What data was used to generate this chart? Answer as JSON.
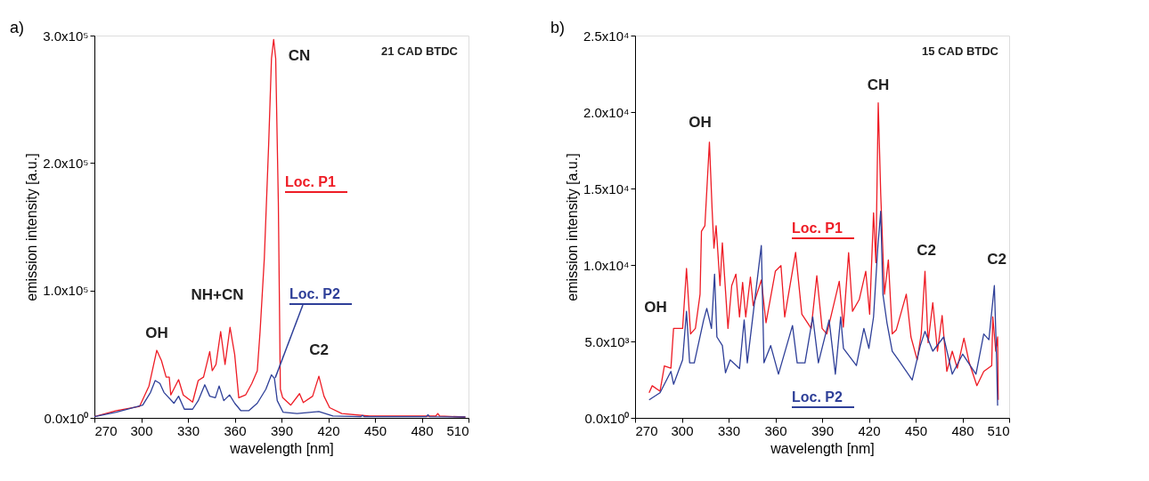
{
  "chart_data": [
    {
      "type": "line",
      "title": "a)",
      "xlabel": "wavelength [nm]",
      "ylabel": "emission intensity [a.u.]",
      "xlim": [
        270,
        510
      ],
      "xticks": [
        270,
        300,
        330,
        360,
        390,
        420,
        450,
        480,
        510
      ],
      "ylim": [
        0,
        300000
      ],
      "yticks": [
        {
          "value": 0,
          "label": "0.0x10⁰"
        },
        {
          "value": 100000,
          "label": "1.0x10⁵"
        },
        {
          "value": 200000,
          "label": "2.0x10⁵"
        },
        {
          "value": 300000,
          "label": "3.0x10⁵"
        }
      ],
      "grid": false,
      "line_style": "solid",
      "marker": "none",
      "series": [
        {
          "name": "Loc. P1",
          "color": "#ee1c25",
          "x": [
            270,
            284,
            299,
            305,
            310,
            313,
            316,
            318,
            319,
            324,
            327,
            333,
            336.6,
            340,
            344,
            345.6,
            348,
            351,
            353.8,
            357,
            360,
            362.6,
            367,
            371,
            374.5,
            376.3,
            379,
            381.8,
            383.6,
            385,
            386.3,
            388,
            389.3,
            390.8,
            396,
            401.6,
            404,
            410,
            414,
            417.3,
            420.9,
            428.7,
            446.6,
            464.9,
            489,
            490.3,
            491.5,
            508
          ],
          "values": [
            1000,
            5600,
            9000,
            25000,
            53000,
            45000,
            32000,
            32000,
            18000,
            30000,
            18000,
            12400,
            29300,
            32000,
            52000,
            37000,
            42000,
            67700,
            42000,
            71000,
            49600,
            15800,
            18000,
            27000,
            37000,
            68000,
            125000,
            215000,
            282000,
            297000,
            282000,
            169000,
            22500,
            15800,
            10000,
            19000,
            12000,
            17000,
            32700,
            17000,
            8000,
            3400,
            1400,
            1400,
            1400,
            3400,
            1400,
            700
          ]
        },
        {
          "name": "Loc. P2",
          "color": "#2e3f98",
          "x": [
            270,
            284,
            301,
            306,
            309,
            312,
            314.6,
            321,
            324,
            327.7,
            333,
            336.6,
            340.8,
            344,
            347.6,
            350,
            353,
            356.7,
            360,
            364,
            369,
            374.5,
            380,
            383.6,
            385.5,
            387.3,
            391,
            400,
            414,
            423,
            441,
            442,
            443,
            483,
            484,
            485,
            508
          ],
          "values": [
            1000,
            4500,
            10000,
            20000,
            29300,
            27000,
            20000,
            11500,
            17000,
            6800,
            6800,
            13500,
            26000,
            17000,
            15800,
            25000,
            13500,
            18000,
            11500,
            5600,
            5600,
            11500,
            22500,
            33800,
            31000,
            13500,
            4500,
            3400,
            5000,
            1500,
            1000,
            2000,
            1000,
            1000,
            2500,
            1000,
            700
          ]
        }
      ],
      "annotations": [
        "21 CAD BTDC",
        "OH",
        "NH+CN",
        "CN",
        "C2"
      ]
    },
    {
      "type": "line",
      "title": "b)",
      "xlabel": "wavelength [nm]",
      "ylabel": "emission intensity [a.u.]",
      "xlim": [
        270,
        510
      ],
      "xticks": [
        270,
        300,
        330,
        360,
        390,
        420,
        450,
        480,
        510
      ],
      "ylim": [
        0,
        25000
      ],
      "yticks": [
        {
          "value": 0,
          "label": "0.0x10⁰"
        },
        {
          "value": 5000,
          "label": "5.0x10³"
        },
        {
          "value": 10000,
          "label": "1.0x10⁴"
        },
        {
          "value": 15000,
          "label": "1.5x10⁴"
        },
        {
          "value": 20000,
          "label": "2.0x10⁴"
        },
        {
          "value": 25000,
          "label": "2.5x10⁴"
        }
      ],
      "grid": false,
      "line_style": "solid",
      "marker": "none",
      "series": [
        {
          "name": "Loc. P1",
          "color": "#ee1c25",
          "x": [
            279,
            281,
            286,
            288.8,
            293,
            294.7,
            300.5,
            303,
            305.6,
            308.7,
            311.7,
            312.6,
            314.8,
            317.7,
            319.4,
            320.6,
            322,
            324.5,
            326,
            329.6,
            332,
            334.7,
            337,
            339,
            341,
            344,
            345.8,
            351,
            354,
            360,
            363.6,
            366,
            373,
            377,
            383,
            386.6,
            390,
            393,
            401,
            403.6,
            407,
            409.5,
            413.8,
            418,
            420.5,
            423,
            424.5,
            426,
            427.6,
            430,
            432.5,
            435,
            437.6,
            444,
            447,
            451,
            453.6,
            456,
            458,
            461,
            464,
            467,
            470,
            473.5,
            476.7,
            481,
            484.4,
            489.3,
            493.7,
            498.8,
            499.5,
            501.4,
            502.6,
            503
          ],
          "values": [
            1640,
            2100,
            1740,
            3400,
            3250,
            5850,
            5850,
            9770,
            5490,
            5850,
            8090,
            12200,
            12570,
            18030,
            13700,
            11100,
            12570,
            8650,
            11450,
            5850,
            8650,
            9400,
            6600,
            8860,
            6600,
            9200,
            7340,
            9020,
            6220,
            9590,
            9960,
            6600,
            10820,
            6780,
            5850,
            9300,
            5850,
            5490,
            8930,
            5940,
            10800,
            6970,
            7730,
            9590,
            6780,
            13410,
            10150,
            20600,
            14630,
            8090,
            10330,
            5490,
            5760,
            8090,
            5290,
            3790,
            5490,
            9590,
            4920,
            7530,
            4360,
            6690,
            3040,
            4360,
            3250,
            5210,
            3600,
            2110,
            3040,
            3420,
            6600,
            4360,
            5290,
            1180
          ]
        },
        {
          "name": "Loc. P2",
          "color": "#2e3f98",
          "x": [
            279,
            286,
            293,
            294.7,
            300.5,
            303,
            305,
            308,
            314,
            316,
            319,
            321,
            322.5,
            326,
            328,
            331,
            337,
            340,
            342,
            351,
            352.7,
            357,
            362,
            371,
            374,
            379,
            384,
            387.6,
            394.5,
            398.5,
            401.9,
            403.7,
            412,
            416.8,
            420,
            423,
            425.7,
            427.6,
            429,
            431.6,
            435,
            439,
            447.8,
            453,
            456,
            461,
            468,
            473.5,
            480.2,
            488.7,
            493.7,
            497,
            500.5,
            501.9,
            502.6
          ],
          "values": [
            1180,
            1640,
            3040,
            2200,
            3790,
            6970,
            3600,
            3600,
            6400,
            7160,
            5850,
            9400,
            5290,
            4730,
            2950,
            3790,
            3230,
            6400,
            3600,
            11270,
            3600,
            4730,
            2860,
            6040,
            3600,
            3600,
            6600,
            3600,
            6400,
            2860,
            6600,
            4540,
            3420,
            5850,
            4540,
            6600,
            11100,
            13510,
            8090,
            6220,
            4360,
            3790,
            2480,
            4730,
            5660,
            4360,
            5290,
            2860,
            4170,
            2860,
            5490,
            5110,
            8650,
            3980,
            800
          ]
        }
      ],
      "annotations": [
        "15 CAD BTDC",
        "OH",
        "OH",
        "CH",
        "C2",
        "C2"
      ]
    }
  ]
}
